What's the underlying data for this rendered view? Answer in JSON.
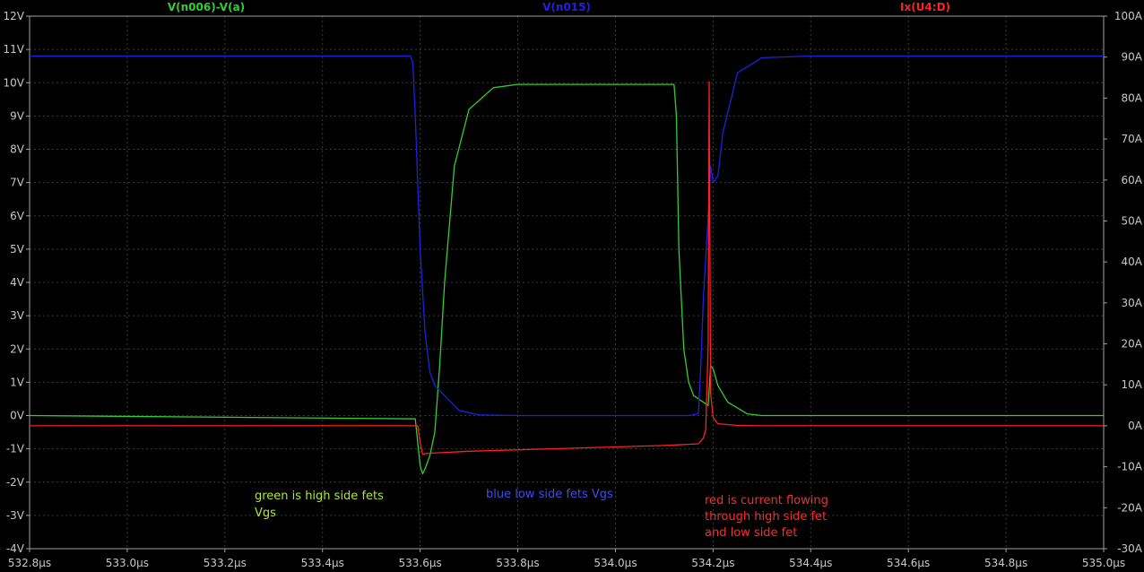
{
  "chart_data": {
    "type": "line",
    "x_unit": "µs",
    "xlim": [
      532.8,
      535.0
    ],
    "x_ticks": [
      "532.8µs",
      "533.0µs",
      "533.2µs",
      "533.4µs",
      "533.6µs",
      "533.8µs",
      "534.0µs",
      "534.2µs",
      "534.4µs",
      "534.6µs",
      "534.8µs",
      "535.0µs"
    ],
    "x_tick_values": [
      532.8,
      533.0,
      533.2,
      533.4,
      533.6,
      533.8,
      534.0,
      534.2,
      534.4,
      534.6,
      534.8,
      535.0
    ],
    "y_left": {
      "unit": "V",
      "ylim": [
        -4,
        12
      ],
      "ticks": [
        "12V",
        "11V",
        "10V",
        "9V",
        "8V",
        "7V",
        "6V",
        "5V",
        "4V",
        "3V",
        "2V",
        "1V",
        "0V",
        "-1V",
        "-2V",
        "-3V",
        "-4V"
      ]
    },
    "y_right": {
      "unit": "A",
      "ylim": [
        -30,
        100
      ],
      "ticks": [
        "100A",
        "90A",
        "80A",
        "70A",
        "60A",
        "50A",
        "40A",
        "30A",
        "20A",
        "10A",
        "0A",
        "-10A",
        "-20A",
        "-30A"
      ]
    },
    "grid": true,
    "series": [
      {
        "name": "V(n006)-V(a)",
        "axis": "left",
        "color": "#33cc33",
        "x": [
          532.8,
          533.59,
          533.6,
          533.605,
          533.61,
          533.62,
          533.63,
          533.64,
          533.65,
          533.67,
          533.7,
          533.75,
          533.8,
          534.0,
          534.12,
          534.125,
          534.13,
          534.14,
          534.15,
          534.16,
          534.17,
          534.18,
          534.19,
          534.195,
          534.2,
          534.21,
          534.23,
          534.27,
          534.3,
          534.4,
          535.0
        ],
        "y": [
          0.0,
          -0.1,
          -1.5,
          -1.75,
          -1.6,
          -1.2,
          -0.5,
          1.5,
          4.0,
          7.5,
          9.2,
          9.85,
          9.95,
          9.95,
          9.95,
          9.0,
          5.0,
          2.0,
          1.0,
          0.6,
          0.5,
          0.4,
          0.3,
          1.5,
          1.4,
          0.9,
          0.4,
          0.05,
          0.0,
          0.0,
          0.0
        ]
      },
      {
        "name": "V(n015)",
        "axis": "left",
        "color": "#2020e0",
        "x": [
          532.8,
          533.58,
          533.585,
          533.59,
          533.6,
          533.61,
          533.62,
          533.63,
          533.65,
          533.68,
          533.72,
          533.8,
          534.0,
          534.15,
          534.17,
          534.175,
          534.18,
          534.19,
          534.195,
          534.2,
          534.21,
          534.22,
          534.25,
          534.3,
          534.4,
          535.0
        ],
        "y": [
          10.8,
          10.8,
          10.6,
          9.0,
          5.0,
          2.5,
          1.3,
          0.9,
          0.6,
          0.15,
          0.02,
          0.0,
          0.0,
          0.0,
          0.05,
          1.5,
          3.5,
          6.0,
          7.5,
          7.0,
          7.2,
          8.5,
          10.3,
          10.75,
          10.8,
          10.8
        ]
      },
      {
        "name": "Ix(U4:D)",
        "axis": "right",
        "color": "#ff2020",
        "x": [
          532.8,
          533.595,
          533.6,
          533.605,
          533.61,
          533.62,
          533.7,
          533.9,
          534.1,
          534.17,
          534.18,
          534.185,
          534.19,
          534.192,
          534.195,
          534.2,
          534.21,
          534.25,
          534.3,
          535.0
        ],
        "y": [
          0.0,
          0.0,
          -4.0,
          -7.0,
          -6.8,
          -6.7,
          -6.2,
          -5.5,
          -4.8,
          -4.4,
          -3.0,
          -1.0,
          20.0,
          84.0,
          8.0,
          2.0,
          0.5,
          0.1,
          0.0,
          0.0
        ]
      }
    ]
  },
  "labels": {
    "trace1": "V(n006)-V(a)",
    "trace2": "V(n015)",
    "trace3": "Ix(U4:D)"
  },
  "annotations": {
    "green": [
      "green is high side fets",
      "Vgs"
    ],
    "blue": [
      "blue low side fets Vgs"
    ],
    "red": [
      "red is current flowing",
      "through high side fet",
      "and low side fet"
    ]
  },
  "colors": {
    "background": "#000000",
    "grid": "#404040",
    "frame": "#a0a0a0",
    "green": "#33cc33",
    "blue": "#2020e0",
    "red": "#ff2020",
    "note_green": "#b4e632",
    "note_blue": "#3c4cf0",
    "note_red": "#ff2a2a"
  }
}
